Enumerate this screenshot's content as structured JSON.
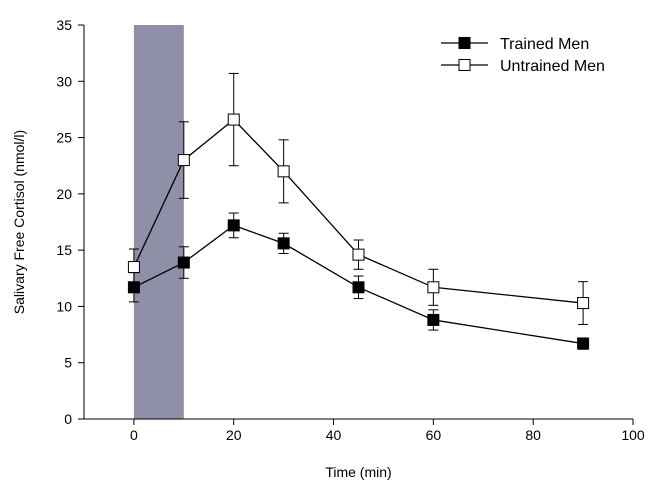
{
  "chart_data": {
    "type": "line",
    "xlabel": "Time (min)",
    "ylabel": "Salivary Free Cortisol (nmol/l)",
    "xlim": [
      -10,
      100
    ],
    "ylim": [
      0,
      35
    ],
    "x_ticks": [
      0,
      20,
      40,
      60,
      80,
      100
    ],
    "y_ticks": [
      0,
      5,
      10,
      15,
      20,
      25,
      30,
      35
    ],
    "grid": false,
    "legend_position": "top-right",
    "shaded_region": {
      "x_start": 0,
      "x_end": 10,
      "color": "#8f8fa8"
    },
    "series": [
      {
        "name": "Trained Men",
        "marker": "filled-square",
        "color": "#000000",
        "x": [
          0,
          10,
          20,
          30,
          45,
          60,
          90
        ],
        "y": [
          11.7,
          13.9,
          17.2,
          15.6,
          11.7,
          8.8,
          6.7
        ],
        "error": [
          1.3,
          1.4,
          1.1,
          0.9,
          1.0,
          0.9,
          0.5
        ]
      },
      {
        "name": "Untrained Men",
        "marker": "open-square",
        "color": "#000000",
        "x": [
          0,
          10,
          20,
          30,
          45,
          60,
          90
        ],
        "y": [
          13.5,
          23.0,
          26.6,
          22.0,
          14.6,
          11.7,
          10.3
        ],
        "error": [
          1.6,
          3.4,
          4.1,
          2.8,
          1.3,
          1.6,
          1.9
        ]
      }
    ]
  }
}
